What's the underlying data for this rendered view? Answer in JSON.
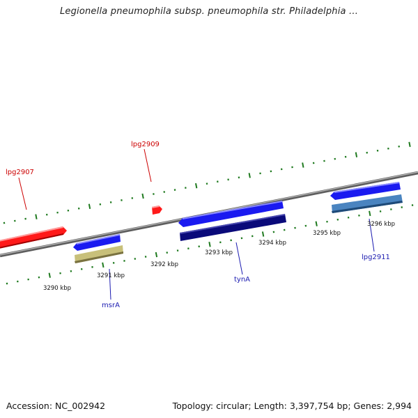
{
  "title": "Legionella pneumophila subsp. pneumophila str. Philadelphia ...",
  "footer": {
    "accession": "Accession: NC_002942",
    "summary": "Topology: circular; Length: 3,397,754 bp; Genes: 2,994"
  },
  "colors": {
    "background": "#ffffff",
    "backbone": "#8a8a8a",
    "forward_gene": "#ff1a1a",
    "forward_label": "#cc0000",
    "reverse_label": "#1a1ab0",
    "tick": "#1f7a1f",
    "feature_blue": "#1a1af0",
    "feature_khaki": "#c8c07a",
    "feature_navy": "#0a0a7a",
    "feature_steel": "#4a84c0"
  },
  "scale": {
    "ticks": [
      {
        "label": "3290 kbp"
      },
      {
        "label": "3291 kbp"
      },
      {
        "label": "3292 kbp"
      },
      {
        "label": "3293 kbp"
      },
      {
        "label": "3294 kbp"
      },
      {
        "label": "3295 kbp"
      },
      {
        "label": "3296 kbp"
      }
    ]
  },
  "genes": [
    {
      "label": "lpg2907",
      "strand": "forward"
    },
    {
      "label": "lpg2909",
      "strand": "forward"
    },
    {
      "label": "msrA",
      "strand": "reverse"
    },
    {
      "label": "tynA",
      "strand": "reverse"
    },
    {
      "label": "lpg2911",
      "strand": "reverse"
    }
  ]
}
